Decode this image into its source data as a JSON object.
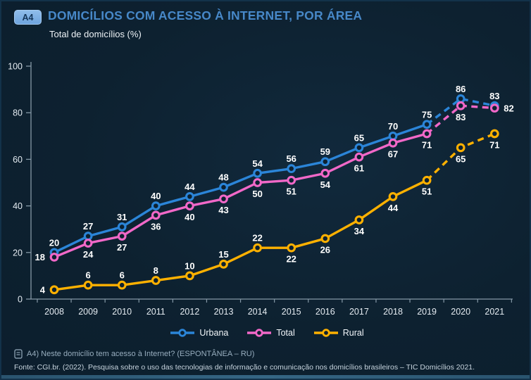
{
  "header": {
    "badge": "A4",
    "title": "DOMICÍLIOS COM ACESSO À INTERNET, POR ÁREA",
    "subtitle": "Total de domicílios (%)"
  },
  "chart_data": {
    "type": "line",
    "title": "Domicílios com acesso à internet, por área",
    "ylabel": "Total de domicílios (%)",
    "xlabel": "",
    "ylim": [
      0,
      100
    ],
    "yticks": [
      0,
      20,
      40,
      60,
      80,
      100
    ],
    "grid": false,
    "legend_position": "bottom",
    "dashed_from_index": 11,
    "categories": [
      "2008",
      "2009",
      "2010",
      "2011",
      "2012",
      "2013",
      "2014",
      "2015",
      "2016",
      "2017",
      "2018",
      "2019",
      "2020",
      "2021"
    ],
    "series": [
      {
        "name": "Urbana",
        "color": "#2b85d8",
        "values": [
          20,
          27,
          31,
          40,
          44,
          48,
          54,
          56,
          59,
          65,
          70,
          75,
          86,
          83
        ],
        "label_pos": [
          "above",
          "above",
          "above",
          "above",
          "above",
          "above",
          "above",
          "above",
          "above",
          "above",
          "above",
          "above",
          "above",
          "above"
        ]
      },
      {
        "name": "Total",
        "color": "#f168c8",
        "values": [
          18,
          24,
          27,
          36,
          40,
          43,
          50,
          51,
          54,
          61,
          67,
          71,
          83,
          82
        ],
        "label_pos": [
          "left",
          "below",
          "below",
          "below",
          "below",
          "below",
          "below",
          "below",
          "below",
          "below",
          "below",
          "below",
          "below",
          "right"
        ]
      },
      {
        "name": "Rural",
        "color": "#ffb100",
        "values": [
          4,
          6,
          6,
          8,
          10,
          15,
          22,
          22,
          26,
          34,
          44,
          51,
          65,
          71
        ],
        "label_pos": [
          "left",
          "above",
          "above",
          "above",
          "above",
          "above",
          "above",
          "below",
          "below",
          "below",
          "below",
          "below",
          "below",
          "below"
        ]
      }
    ]
  },
  "footer": {
    "question": "A4) Neste domicílio tem acesso à Internet? (ESPONTÂNEA – RU)",
    "source": "Fonte: CGI.br. (2022). Pesquisa sobre o uso das tecnologias de informação e comunicação nos domicílios brasileiros – TIC Domicílios 2021."
  },
  "colors": {
    "background": "#0d2130",
    "axis": "#8598a6",
    "tick_label": "#e4ebf1",
    "data_label": "#ffffff",
    "title": "#4788c8"
  }
}
